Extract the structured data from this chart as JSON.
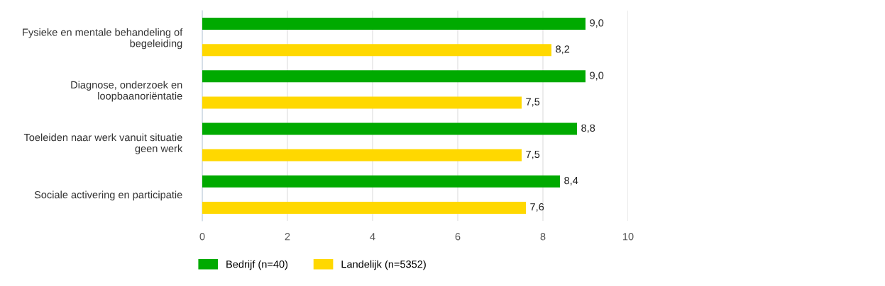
{
  "chart_data": {
    "type": "bar",
    "orientation": "horizontal",
    "categories": [
      "Fysieke en mentale behandeling of\nbegeleiding",
      "Diagnose, onderzoek en\nloopbaanoriëntatie",
      "Toeleiden naar werk vanuit situatie\ngeen werk",
      "Sociale activering en participatie"
    ],
    "series": [
      {
        "name": "Bedrijf (n=40)",
        "color": "#00aa00",
        "values": [
          9.0,
          9.0,
          8.8,
          8.4
        ],
        "value_labels": [
          "9,0",
          "9,0",
          "8,8",
          "8,4"
        ]
      },
      {
        "name": "Landelijk (n=5352)",
        "color": "#ffd800",
        "values": [
          8.2,
          7.5,
          7.5,
          7.6
        ],
        "value_labels": [
          "8,2",
          "7,5",
          "7,5",
          "7,6"
        ]
      }
    ],
    "xlim": [
      0,
      10
    ],
    "xticks": [
      0,
      2,
      4,
      6,
      8,
      10
    ],
    "grid": "x",
    "legend": "bottom left"
  }
}
